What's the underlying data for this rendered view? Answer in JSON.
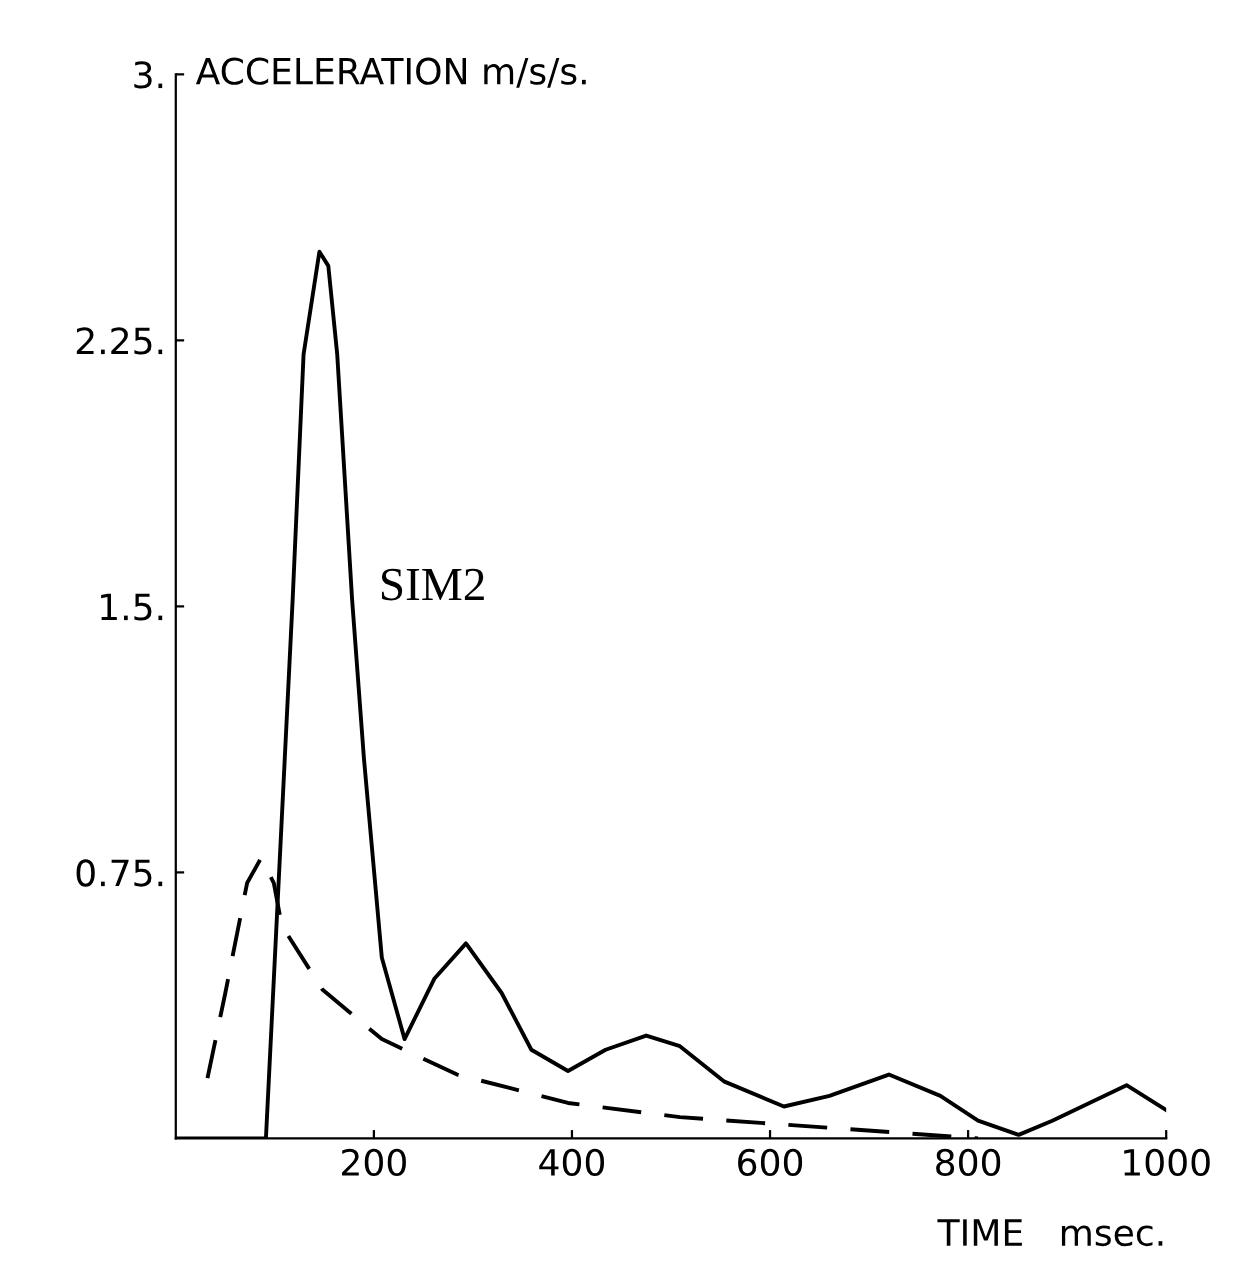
{
  "chart_data": {
    "type": "line",
    "xlabel": "TIME   msec.",
    "ylabel": "ACCELERATION m/s/s.",
    "xlim": [
      0,
      1000
    ],
    "ylim": [
      0,
      3
    ],
    "xticks": [
      200,
      400,
      600,
      800,
      1000
    ],
    "yticks": [
      {
        "value": 0.75,
        "label": "0.75."
      },
      {
        "value": 1.5,
        "label": "1.5."
      },
      {
        "value": 2.25,
        "label": "2.25."
      },
      {
        "value": 3,
        "label": "3."
      }
    ],
    "grid": false,
    "legend": false,
    "marker": "none",
    "series": [
      {
        "name": "SIM2",
        "color": "#000000",
        "line_style": "solid",
        "x": [
          0,
          91,
          118,
          129,
          145,
          154,
          163,
          178,
          190,
          208,
          231,
          261,
          293,
          329,
          359,
          396,
          434,
          475,
          509,
          554,
          614,
          660,
          720,
          772,
          810,
          851,
          885,
          960,
          1000
        ],
        "values": [
          0,
          0,
          1.52,
          2.21,
          2.5,
          2.46,
          2.21,
          1.52,
          1.07,
          0.51,
          0.28,
          0.45,
          0.55,
          0.41,
          0.25,
          0.19,
          0.25,
          0.29,
          0.26,
          0.16,
          0.09,
          0.12,
          0.18,
          0.12,
          0.05,
          0.01,
          0.05,
          0.15,
          0.08
        ]
      },
      {
        "color": "#000000",
        "line_style": "dashed",
        "x": [
          32,
          50,
          72,
          86,
          99,
          107,
          148,
          208,
          284,
          396,
          509,
          660,
          810
        ],
        "values": [
          0.17,
          0.41,
          0.72,
          0.79,
          0.72,
          0.6,
          0.42,
          0.28,
          0.18,
          0.1,
          0.06,
          0.03,
          0
        ]
      }
    ]
  }
}
